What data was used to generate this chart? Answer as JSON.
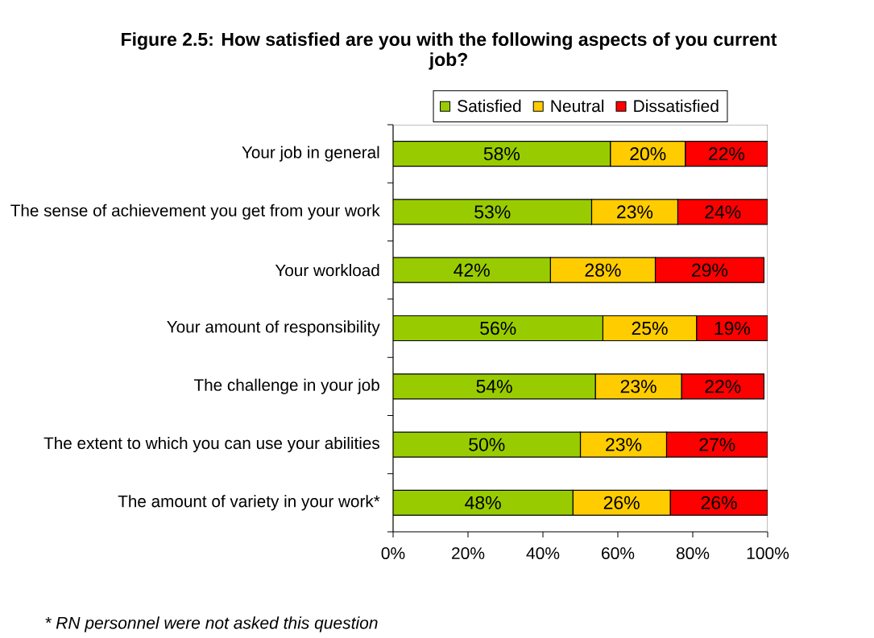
{
  "chart_data": {
    "type": "bar",
    "orientation": "horizontal",
    "stacked": true,
    "title": "Figure 2.5: How satisfied are you with the following aspects of you current job?",
    "categories": [
      "Your job in general",
      "The sense of achievement you get from your work",
      "Your workload",
      "Your amount of responsibility",
      "The challenge in your job",
      "The extent to which you can use your abilities",
      "The amount of variety in your work*"
    ],
    "series": [
      {
        "name": "Satisfied",
        "color": "#99cc00",
        "values": [
          58,
          53,
          42,
          56,
          54,
          50,
          48
        ],
        "value_labels": [
          "58%",
          "53%",
          "42%",
          "56%",
          "54%",
          "50%",
          "48%"
        ]
      },
      {
        "name": "Neutral",
        "color": "#ffcc00",
        "values": [
          20,
          23,
          28,
          25,
          23,
          23,
          26
        ],
        "value_labels": [
          "20%",
          "23%",
          "28%",
          "25%",
          "23%",
          "23%",
          "26%"
        ]
      },
      {
        "name": "Dissatisfied",
        "color": "#ff0000",
        "values": [
          22,
          24,
          29,
          19,
          22,
          27,
          26
        ],
        "value_labels": [
          "22%",
          "24%",
          "29%",
          "19%",
          "22%",
          "27%",
          "26%"
        ]
      }
    ],
    "xlim": [
      0,
      100
    ],
    "xticks": [
      {
        "value": 0,
        "label": "0%"
      },
      {
        "value": 20,
        "label": "20%"
      },
      {
        "value": 40,
        "label": "40%"
      },
      {
        "value": 60,
        "label": "60%"
      },
      {
        "value": 80,
        "label": "80%"
      },
      {
        "value": 100,
        "label": "100%"
      }
    ],
    "legend": "top",
    "annotations": [
      "* RN personnel were not asked this question"
    ]
  }
}
